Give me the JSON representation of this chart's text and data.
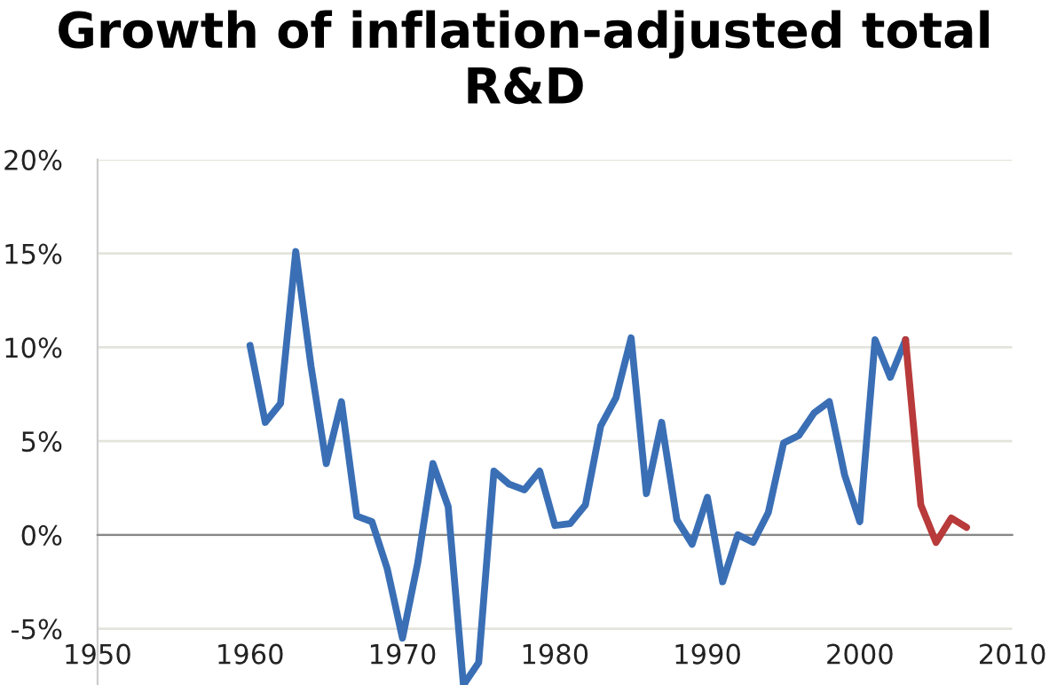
{
  "chart_data": {
    "type": "line",
    "title": "Growth of inflation-adjusted total\nR&D",
    "series": [
      {
        "color": "#3a6fb5",
        "x": [
          1960,
          1961,
          1962,
          1963,
          1964,
          1965,
          1966,
          1967,
          1968,
          1969,
          1970,
          1971,
          1972,
          1973,
          1974,
          1975,
          1976,
          1977,
          1978,
          1979,
          1980,
          1981,
          1982,
          1983,
          1984,
          1985,
          1986,
          1987,
          1988,
          1989,
          1990,
          1991,
          1992,
          1993,
          1994,
          1995,
          1996,
          1997,
          1998,
          1999,
          2000,
          2001,
          2002,
          2003
        ],
        "values": [
          10.1,
          6.0,
          7.0,
          15.1,
          9.0,
          3.8,
          7.1,
          1.0,
          0.7,
          -1.8,
          -5.5,
          -1.5,
          3.8,
          1.5,
          -8.0,
          -6.8,
          3.4,
          2.7,
          2.4,
          3.4,
          0.5,
          0.6,
          1.6,
          5.8,
          7.3,
          10.5,
          2.2,
          6.0,
          0.8,
          -0.5,
          2.0,
          -2.5,
          0.0,
          -0.4,
          1.2,
          4.9,
          5.3,
          6.5,
          7.1,
          3.2,
          0.7,
          10.4,
          8.4,
          10.4
        ]
      },
      {
        "color": "#b83a3a",
        "x": [
          2003,
          2004,
          2005,
          2006,
          2007
        ],
        "values": [
          10.4,
          1.6,
          -0.4,
          0.9,
          0.4
        ]
      }
    ],
    "xlim": [
      1950,
      2010
    ],
    "xticks": [
      1950,
      1960,
      1970,
      1980,
      1990,
      2000,
      2010
    ],
    "ylim": [
      -8,
      20
    ],
    "yticks": [
      {
        "value": -5,
        "label": "-5%"
      },
      {
        "value": 0,
        "label": "0%"
      },
      {
        "value": 5,
        "label": "5%"
      },
      {
        "value": 10,
        "label": "10%"
      },
      {
        "value": 15,
        "label": "15%"
      },
      {
        "value": 20,
        "label": "20%"
      }
    ],
    "grid": "y",
    "line_style": "solid",
    "marker": "none"
  }
}
